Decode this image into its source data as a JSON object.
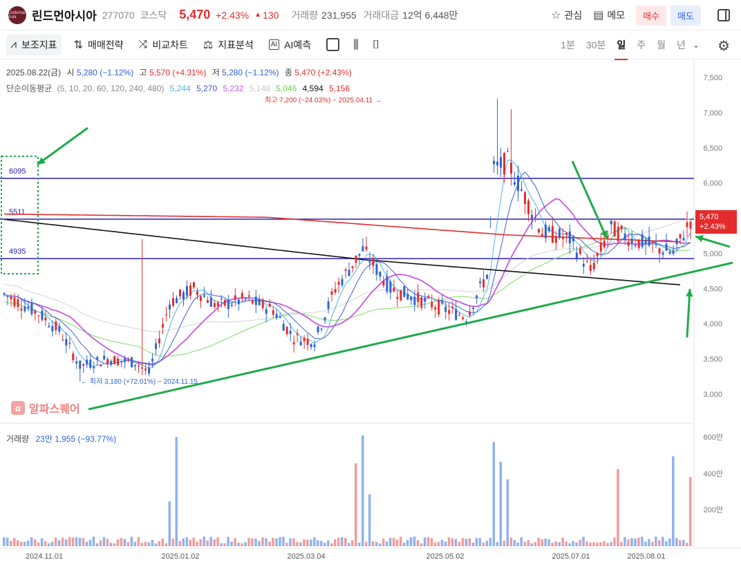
{
  "header": {
    "stock_name": "린드먼아시아",
    "code": "277070",
    "market": "코스닥",
    "price": "5,470",
    "change_pct": "+2.43%",
    "change_arrow": "▲",
    "change": "130",
    "volume_label": "거래량",
    "volume": "231,955",
    "amount_label": "거래대금",
    "amount": "12억 6,448만",
    "logo_text": "Lindeman Asia",
    "watch_label": "관심",
    "memo_label": "메모",
    "buy_label": "매수",
    "sell_label": "매도"
  },
  "toolbar": {
    "indicators": "보조지표",
    "strategy": "매매전략",
    "compare": "비교차트",
    "indicator_analysis": "지표분석",
    "ai_predict": "AI예측",
    "periods": [
      "1분",
      "30분",
      "일",
      "주",
      "월",
      "년"
    ],
    "active_period": "일"
  },
  "ohlc": {
    "date": "2025.08.22(금)",
    "open_label": "시",
    "open": "5,280 (−1.12%)",
    "high_label": "고",
    "high": "5,570 (+4.31%)",
    "low_label": "저",
    "low": "5,280 (−1.12%)",
    "close_label": "종",
    "close": "5,470 (+2.43%)"
  },
  "ma": {
    "label": "단순이동평균",
    "periods": "(5, 10, 20, 60, 120, 240, 480)",
    "values": [
      "5,244",
      "5,270",
      "5,232",
      "5,148",
      "5,046",
      "4,594",
      "5,156"
    ],
    "colors": [
      "#4fb3e8",
      "#3f5bd1",
      "#c659e0",
      "#bdbdbd",
      "#6fd14d",
      "#111111",
      "#e42c2c"
    ]
  },
  "volume_info": {
    "label": "거래량",
    "value": "23만 1,955 (−93.77%)"
  },
  "watermark": {
    "text": "알파스퀘어",
    "icon": "α"
  },
  "last_price_tag": {
    "price": "5,470",
    "pct": "+2.43%"
  },
  "chart_data": {
    "type": "candlestick",
    "y_ticks": [
      "7,500",
      "7,000",
      "6,500",
      "6,000",
      "5,500",
      "5,000",
      "4,500",
      "4,000",
      "3,500",
      "3,000"
    ],
    "volume_ticks": [
      "600만",
      "400만",
      "200만"
    ],
    "x_ticks": [
      "2024.11.01",
      "2025.01.02",
      "2025.03.04",
      "2025.05.02",
      "2025.07.01",
      "2025.08.01"
    ],
    "ylim": [
      2800,
      7600
    ],
    "annotations": {
      "high": "최고 7,200 (−24.03%) − 2025.04.11",
      "low": "← 최저 3,180 (+72.01%) − 2024.11.15"
    },
    "horizontal_levels": [
      6095,
      5511,
      4935
    ],
    "level_labels": [
      "6095",
      "5511",
      "4935"
    ]
  }
}
